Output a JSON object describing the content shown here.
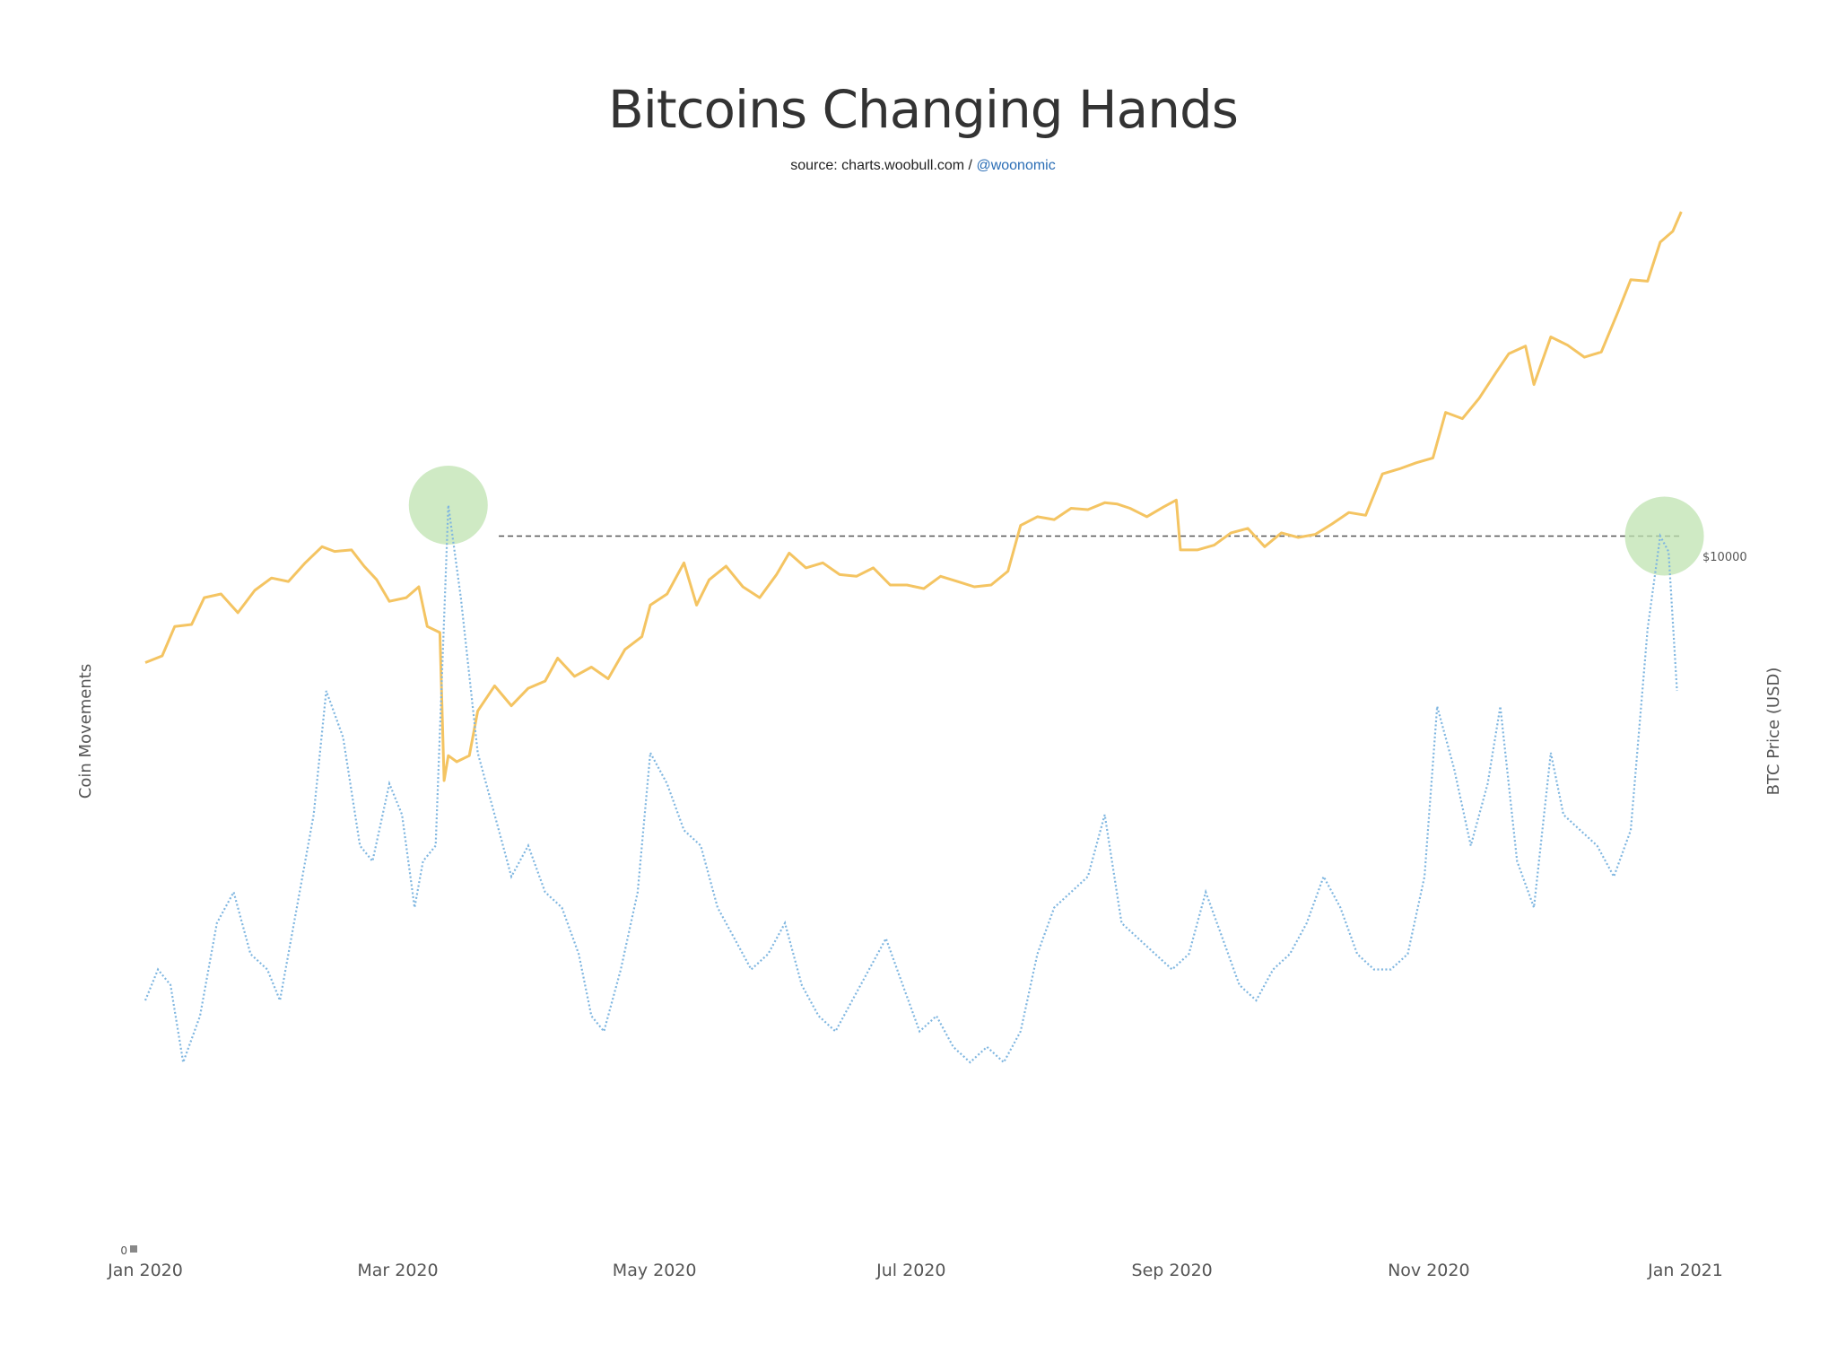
{
  "chart_data": {
    "type": "line",
    "title": "Bitcoins Changing Hands",
    "subtitle": {
      "source_text": "source: charts.woobull.com / ",
      "handle": "@woonomic"
    },
    "x_ticks": [
      "Jan 2020",
      "Mar 2020",
      "May 2020",
      "Jul 2020",
      "Sep 2020",
      "Nov 2020",
      "Jan 2021"
    ],
    "x_range": [
      "2020-01-01",
      "2021-01-01"
    ],
    "y_left": {
      "label": "Coin Movements",
      "ticks": [
        "0"
      ]
    },
    "y_right": {
      "label": "BTC Price (USD)",
      "scale": "log",
      "ticks": [
        "$10000"
      ]
    },
    "grid": false,
    "legend": "none",
    "colors": {
      "price": "#f4c462",
      "movements": "#7fb6e0",
      "highlight": "#bfe3b0",
      "reference_line": "#555555"
    },
    "annotations": [
      {
        "type": "horizontal-dashed-line",
        "from": "2020-03-25",
        "to": "2020-12-31",
        "movement_value": 4.6
      },
      {
        "type": "highlight-circle",
        "x": "2020-03-13",
        "movement_value": 4.8
      },
      {
        "type": "highlight-circle",
        "x": "2020-12-27",
        "movement_value": 4.6
      }
    ],
    "series": [
      {
        "name": "BTC Price (USD)",
        "axis": "right",
        "points": [
          [
            "2020-01-01",
            7200
          ],
          [
            "2020-01-05",
            7350
          ],
          [
            "2020-01-08",
            8050
          ],
          [
            "2020-01-12",
            8100
          ],
          [
            "2020-01-15",
            8800
          ],
          [
            "2020-01-19",
            8900
          ],
          [
            "2020-01-23",
            8400
          ],
          [
            "2020-01-27",
            9000
          ],
          [
            "2020-01-31",
            9350
          ],
          [
            "2020-02-04",
            9250
          ],
          [
            "2020-02-08",
            9800
          ],
          [
            "2020-02-12",
            10300
          ],
          [
            "2020-02-15",
            10150
          ],
          [
            "2020-02-19",
            10200
          ],
          [
            "2020-02-22",
            9700
          ],
          [
            "2020-02-25",
            9300
          ],
          [
            "2020-02-28",
            8700
          ],
          [
            "2020-03-03",
            8800
          ],
          [
            "2020-03-06",
            9100
          ],
          [
            "2020-03-08",
            8050
          ],
          [
            "2020-03-11",
            7900
          ],
          [
            "2020-03-12",
            5000
          ],
          [
            "2020-03-13",
            5400
          ],
          [
            "2020-03-15",
            5300
          ],
          [
            "2020-03-18",
            5400
          ],
          [
            "2020-03-20",
            6200
          ],
          [
            "2020-03-24",
            6700
          ],
          [
            "2020-03-28",
            6300
          ],
          [
            "2020-04-01",
            6650
          ],
          [
            "2020-04-05",
            6800
          ],
          [
            "2020-04-08",
            7300
          ],
          [
            "2020-04-12",
            6900
          ],
          [
            "2020-04-16",
            7100
          ],
          [
            "2020-04-20",
            6850
          ],
          [
            "2020-04-24",
            7500
          ],
          [
            "2020-04-28",
            7800
          ],
          [
            "2020-04-30",
            8600
          ],
          [
            "2020-05-04",
            8900
          ],
          [
            "2020-05-08",
            9800
          ],
          [
            "2020-05-11",
            8600
          ],
          [
            "2020-05-14",
            9300
          ],
          [
            "2020-05-18",
            9700
          ],
          [
            "2020-05-22",
            9100
          ],
          [
            "2020-05-26",
            8800
          ],
          [
            "2020-05-30",
            9450
          ],
          [
            "2020-06-02",
            10100
          ],
          [
            "2020-06-06",
            9650
          ],
          [
            "2020-06-10",
            9800
          ],
          [
            "2020-06-14",
            9450
          ],
          [
            "2020-06-18",
            9400
          ],
          [
            "2020-06-22",
            9650
          ],
          [
            "2020-06-26",
            9150
          ],
          [
            "2020-06-30",
            9150
          ],
          [
            "2020-07-04",
            9050
          ],
          [
            "2020-07-08",
            9400
          ],
          [
            "2020-07-12",
            9250
          ],
          [
            "2020-07-16",
            9100
          ],
          [
            "2020-07-20",
            9150
          ],
          [
            "2020-07-24",
            9550
          ],
          [
            "2020-07-27",
            11000
          ],
          [
            "2020-07-31",
            11300
          ],
          [
            "2020-08-04",
            11200
          ],
          [
            "2020-08-08",
            11600
          ],
          [
            "2020-08-12",
            11550
          ],
          [
            "2020-08-16",
            11800
          ],
          [
            "2020-08-19",
            11750
          ],
          [
            "2020-08-22",
            11600
          ],
          [
            "2020-08-26",
            11300
          ],
          [
            "2020-08-30",
            11650
          ],
          [
            "2020-09-02",
            11900
          ],
          [
            "2020-09-03",
            10200
          ],
          [
            "2020-09-07",
            10200
          ],
          [
            "2020-09-11",
            10350
          ],
          [
            "2020-09-15",
            10750
          ],
          [
            "2020-09-19",
            10900
          ],
          [
            "2020-09-23",
            10300
          ],
          [
            "2020-09-27",
            10750
          ],
          [
            "2020-10-01",
            10600
          ],
          [
            "2020-10-05",
            10700
          ],
          [
            "2020-10-09",
            11050
          ],
          [
            "2020-10-13",
            11450
          ],
          [
            "2020-10-17",
            11350
          ],
          [
            "2020-10-21",
            12900
          ],
          [
            "2020-10-25",
            13100
          ],
          [
            "2020-10-29",
            13350
          ],
          [
            "2020-11-02",
            13550
          ],
          [
            "2020-11-05",
            15600
          ],
          [
            "2020-11-09",
            15300
          ],
          [
            "2020-11-13",
            16300
          ],
          [
            "2020-11-17",
            17650
          ],
          [
            "2020-11-20",
            18700
          ],
          [
            "2020-11-24",
            19150
          ],
          [
            "2020-11-26",
            17000
          ],
          [
            "2020-11-30",
            19700
          ],
          [
            "2020-12-04",
            19200
          ],
          [
            "2020-12-08",
            18500
          ],
          [
            "2020-12-12",
            18800
          ],
          [
            "2020-12-16",
            21300
          ],
          [
            "2020-12-19",
            23500
          ],
          [
            "2020-12-23",
            23400
          ],
          [
            "2020-12-26",
            26400
          ],
          [
            "2020-12-29",
            27300
          ],
          [
            "2020-12-31",
            29000
          ]
        ]
      },
      {
        "name": "Coin Movements",
        "axis": "left",
        "points": [
          [
            "2020-01-01",
            1.6
          ],
          [
            "2020-01-04",
            1.8
          ],
          [
            "2020-01-07",
            1.7
          ],
          [
            "2020-01-10",
            1.2
          ],
          [
            "2020-01-14",
            1.5
          ],
          [
            "2020-01-18",
            2.1
          ],
          [
            "2020-01-22",
            2.3
          ],
          [
            "2020-01-26",
            1.9
          ],
          [
            "2020-01-30",
            1.8
          ],
          [
            "2020-02-02",
            1.6
          ],
          [
            "2020-02-06",
            2.2
          ],
          [
            "2020-02-10",
            2.8
          ],
          [
            "2020-02-13",
            3.6
          ],
          [
            "2020-02-17",
            3.3
          ],
          [
            "2020-02-21",
            2.6
          ],
          [
            "2020-02-24",
            2.5
          ],
          [
            "2020-02-28",
            3.0
          ],
          [
            "2020-03-02",
            2.8
          ],
          [
            "2020-03-05",
            2.2
          ],
          [
            "2020-03-07",
            2.5
          ],
          [
            "2020-03-10",
            2.6
          ],
          [
            "2020-03-13",
            4.8
          ],
          [
            "2020-03-16",
            4.2
          ],
          [
            "2020-03-20",
            3.2
          ],
          [
            "2020-03-24",
            2.8
          ],
          [
            "2020-03-28",
            2.4
          ],
          [
            "2020-04-01",
            2.6
          ],
          [
            "2020-04-05",
            2.3
          ],
          [
            "2020-04-09",
            2.2
          ],
          [
            "2020-04-13",
            1.9
          ],
          [
            "2020-04-16",
            1.5
          ],
          [
            "2020-04-19",
            1.4
          ],
          [
            "2020-04-23",
            1.8
          ],
          [
            "2020-04-27",
            2.3
          ],
          [
            "2020-04-30",
            3.2
          ],
          [
            "2020-05-04",
            3.0
          ],
          [
            "2020-05-08",
            2.7
          ],
          [
            "2020-05-12",
            2.6
          ],
          [
            "2020-05-16",
            2.2
          ],
          [
            "2020-05-20",
            2.0
          ],
          [
            "2020-05-24",
            1.8
          ],
          [
            "2020-05-28",
            1.9
          ],
          [
            "2020-06-01",
            2.1
          ],
          [
            "2020-06-05",
            1.7
          ],
          [
            "2020-06-09",
            1.5
          ],
          [
            "2020-06-13",
            1.4
          ],
          [
            "2020-06-17",
            1.6
          ],
          [
            "2020-06-21",
            1.8
          ],
          [
            "2020-06-25",
            2.0
          ],
          [
            "2020-06-29",
            1.7
          ],
          [
            "2020-07-03",
            1.4
          ],
          [
            "2020-07-07",
            1.5
          ],
          [
            "2020-07-11",
            1.3
          ],
          [
            "2020-07-15",
            1.2
          ],
          [
            "2020-07-19",
            1.3
          ],
          [
            "2020-07-23",
            1.2
          ],
          [
            "2020-07-27",
            1.4
          ],
          [
            "2020-07-31",
            1.9
          ],
          [
            "2020-08-04",
            2.2
          ],
          [
            "2020-08-08",
            2.3
          ],
          [
            "2020-08-12",
            2.4
          ],
          [
            "2020-08-16",
            2.8
          ],
          [
            "2020-08-20",
            2.1
          ],
          [
            "2020-08-24",
            2.0
          ],
          [
            "2020-08-28",
            1.9
          ],
          [
            "2020-09-01",
            1.8
          ],
          [
            "2020-09-05",
            1.9
          ],
          [
            "2020-09-09",
            2.3
          ],
          [
            "2020-09-13",
            2.0
          ],
          [
            "2020-09-17",
            1.7
          ],
          [
            "2020-09-21",
            1.6
          ],
          [
            "2020-09-25",
            1.8
          ],
          [
            "2020-09-29",
            1.9
          ],
          [
            "2020-10-03",
            2.1
          ],
          [
            "2020-10-07",
            2.4
          ],
          [
            "2020-10-11",
            2.2
          ],
          [
            "2020-10-15",
            1.9
          ],
          [
            "2020-10-19",
            1.8
          ],
          [
            "2020-10-23",
            1.8
          ],
          [
            "2020-10-27",
            1.9
          ],
          [
            "2020-10-31",
            2.4
          ],
          [
            "2020-11-03",
            3.5
          ],
          [
            "2020-11-07",
            3.1
          ],
          [
            "2020-11-11",
            2.6
          ],
          [
            "2020-11-15",
            3.0
          ],
          [
            "2020-11-18",
            3.5
          ],
          [
            "2020-11-22",
            2.5
          ],
          [
            "2020-11-26",
            2.2
          ],
          [
            "2020-11-30",
            3.2
          ],
          [
            "2020-12-03",
            2.8
          ],
          [
            "2020-12-07",
            2.7
          ],
          [
            "2020-12-11",
            2.6
          ],
          [
            "2020-12-15",
            2.4
          ],
          [
            "2020-12-19",
            2.7
          ],
          [
            "2020-12-23",
            4.0
          ],
          [
            "2020-12-26",
            4.6
          ],
          [
            "2020-12-28",
            4.5
          ],
          [
            "2020-12-30",
            3.6
          ]
        ]
      }
    ]
  }
}
